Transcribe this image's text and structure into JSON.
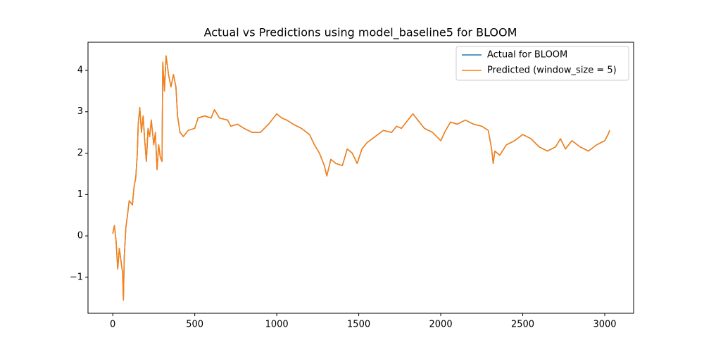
{
  "chart_data": {
    "type": "line",
    "title": "Actual vs Predictions using model_baseline5 for BLOOM",
    "x": [
      0,
      10,
      20,
      30,
      40,
      50,
      60,
      65,
      70,
      80,
      90,
      100,
      110,
      120,
      130,
      140,
      150,
      155,
      165,
      175,
      185,
      195,
      205,
      215,
      225,
      235,
      250,
      260,
      270,
      280,
      290,
      300,
      305,
      315,
      325,
      340,
      355,
      370,
      385,
      395,
      410,
      430,
      460,
      500,
      520,
      560,
      600,
      620,
      650,
      700,
      720,
      760,
      800,
      850,
      900,
      950,
      1000,
      1030,
      1060,
      1100,
      1150,
      1200,
      1230,
      1260,
      1290,
      1305,
      1330,
      1360,
      1400,
      1430,
      1460,
      1490,
      1520,
      1550,
      1600,
      1650,
      1700,
      1730,
      1760,
      1800,
      1830,
      1860,
      1900,
      1950,
      2000,
      2030,
      2060,
      2100,
      2150,
      2200,
      2250,
      2290,
      2310,
      2320,
      2330,
      2360,
      2400,
      2450,
      2500,
      2550,
      2600,
      2650,
      2700,
      2730,
      2760,
      2800,
      2850,
      2900,
      2950,
      3000,
      3020,
      3030
    ],
    "series": [
      {
        "name": "Actual for BLOOM",
        "color": "#1f77b4",
        "values": [
          0.05,
          0.25,
          -0.1,
          -0.8,
          -0.3,
          -0.6,
          -0.9,
          -1.55,
          -0.5,
          0.2,
          0.5,
          0.85,
          0.8,
          0.75,
          1.2,
          1.4,
          2.0,
          2.7,
          3.1,
          2.5,
          2.9,
          2.3,
          1.8,
          2.6,
          2.4,
          2.8,
          2.2,
          2.5,
          1.6,
          2.2,
          1.9,
          1.8,
          4.2,
          3.5,
          4.35,
          3.9,
          3.6,
          3.9,
          3.6,
          2.9,
          2.5,
          2.4,
          2.55,
          2.6,
          2.85,
          2.9,
          2.85,
          3.05,
          2.85,
          2.8,
          2.65,
          2.7,
          2.6,
          2.5,
          2.5,
          2.7,
          2.95,
          2.85,
          2.8,
          2.7,
          2.6,
          2.45,
          2.2,
          2.0,
          1.7,
          1.45,
          1.85,
          1.75,
          1.7,
          2.1,
          2.0,
          1.75,
          2.1,
          2.25,
          2.4,
          2.55,
          2.5,
          2.65,
          2.6,
          2.8,
          2.95,
          2.8,
          2.6,
          2.5,
          2.3,
          2.55,
          2.75,
          2.7,
          2.8,
          2.7,
          2.65,
          2.55,
          2.1,
          1.75,
          2.05,
          1.95,
          2.2,
          2.3,
          2.45,
          2.35,
          2.15,
          2.05,
          2.15,
          2.35,
          2.1,
          2.3,
          2.15,
          2.05,
          2.2,
          2.3,
          2.45,
          2.55
        ]
      },
      {
        "name": "Predicted (window_size = 5)",
        "color": "#ff7f0e",
        "values": [
          0.05,
          0.25,
          -0.1,
          -0.8,
          -0.3,
          -0.6,
          -0.9,
          -1.55,
          -0.5,
          0.2,
          0.5,
          0.85,
          0.8,
          0.75,
          1.2,
          1.4,
          2.0,
          2.7,
          3.1,
          2.5,
          2.9,
          2.3,
          1.8,
          2.6,
          2.4,
          2.8,
          2.2,
          2.5,
          1.6,
          2.2,
          1.9,
          1.8,
          4.2,
          3.5,
          4.35,
          3.9,
          3.6,
          3.9,
          3.6,
          2.9,
          2.5,
          2.4,
          2.55,
          2.6,
          2.85,
          2.9,
          2.85,
          3.05,
          2.85,
          2.8,
          2.65,
          2.7,
          2.6,
          2.5,
          2.5,
          2.7,
          2.95,
          2.85,
          2.8,
          2.7,
          2.6,
          2.45,
          2.2,
          2.0,
          1.7,
          1.45,
          1.85,
          1.75,
          1.7,
          2.1,
          2.0,
          1.75,
          2.1,
          2.25,
          2.4,
          2.55,
          2.5,
          2.65,
          2.6,
          2.8,
          2.95,
          2.8,
          2.6,
          2.5,
          2.3,
          2.55,
          2.75,
          2.7,
          2.8,
          2.7,
          2.65,
          2.55,
          2.1,
          1.75,
          2.05,
          1.95,
          2.2,
          2.3,
          2.45,
          2.35,
          2.15,
          2.05,
          2.15,
          2.35,
          2.1,
          2.3,
          2.15,
          2.05,
          2.2,
          2.3,
          2.45,
          2.55
        ]
      }
    ],
    "xlim": [
      -151,
      3176
    ],
    "xticks": [
      0,
      500,
      1000,
      1500,
      2000,
      2500,
      3000
    ],
    "ylim": [
      -1.87,
      4.68
    ],
    "yticks": [
      {
        "value": -1,
        "label": "−1"
      },
      0,
      1,
      2,
      3,
      4
    ],
    "legend": "upper right"
  }
}
